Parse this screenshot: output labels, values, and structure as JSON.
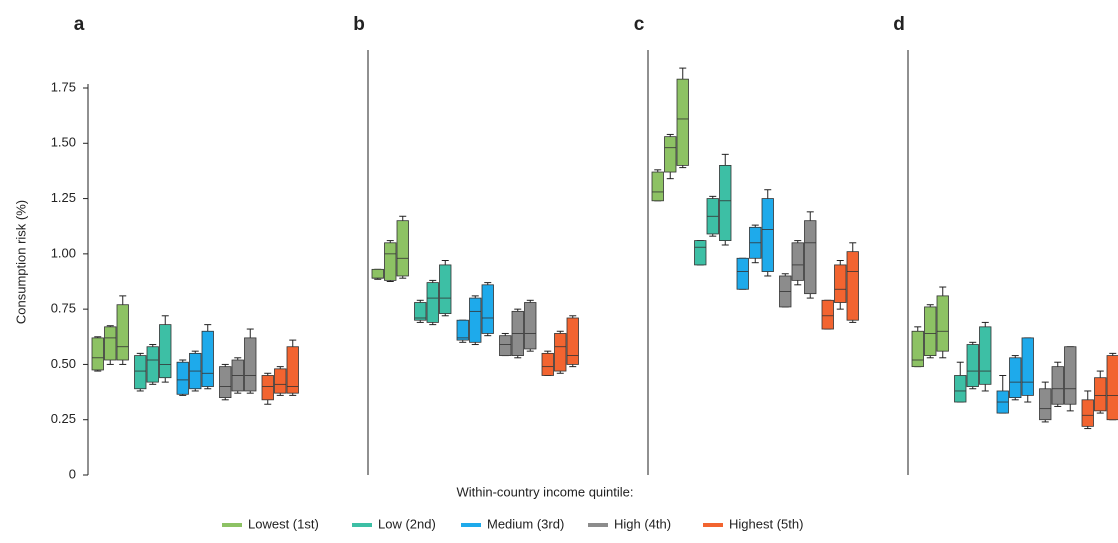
{
  "chart_data": {
    "type": "box",
    "ylabel": "Consumption risk (%)",
    "ylim": [
      0,
      1.75
    ],
    "yticks": [
      0,
      0.25,
      {
        "value": 0.5,
        "label": "0.50"
      },
      0.75,
      {
        "value": 1,
        "label": "1.00"
      },
      1.25,
      {
        "value": 1.5,
        "label": "1.50"
      },
      1.75
    ],
    "legend_title": "Within-country income quintile:",
    "series": [
      {
        "name": "Lowest (1st)",
        "color": "#8dc264"
      },
      {
        "name": "Low (2nd)",
        "color": "#3dbfa5"
      },
      {
        "name": "Medium (3rd)",
        "color": "#1eaaeb"
      },
      {
        "name": "High (4th)",
        "color": "#8c8c8c"
      },
      {
        "name": "Highest (5th)",
        "color": "#f26430"
      }
    ],
    "panels": [
      {
        "label": "a",
        "boxes": [
          [
            [
              0.47,
              0.475,
              0.53,
              0.62,
              0.625
            ],
            [
              0.5,
              0.52,
              0.62,
              0.67,
              0.675
            ],
            [
              0.5,
              0.52,
              0.58,
              0.77,
              0.81
            ]
          ],
          [
            [
              0.38,
              0.39,
              0.47,
              0.54,
              0.55
            ],
            [
              0.41,
              0.42,
              0.52,
              0.58,
              0.59
            ],
            [
              0.42,
              0.44,
              0.5,
              0.68,
              0.72
            ]
          ],
          [
            [
              0.36,
              0.365,
              0.43,
              0.51,
              0.52
            ],
            [
              0.38,
              0.39,
              0.47,
              0.55,
              0.56
            ],
            [
              0.39,
              0.4,
              0.46,
              0.65,
              0.68
            ]
          ],
          [
            [
              0.34,
              0.35,
              0.4,
              0.49,
              0.5
            ],
            [
              0.37,
              0.38,
              0.45,
              0.52,
              0.53
            ],
            [
              0.37,
              0.38,
              0.45,
              0.62,
              0.66
            ]
          ],
          [
            [
              0.32,
              0.34,
              0.4,
              0.45,
              0.46
            ],
            [
              0.36,
              0.37,
              0.41,
              0.48,
              0.49
            ],
            [
              0.36,
              0.37,
              0.4,
              0.58,
              0.61
            ]
          ]
        ]
      },
      {
        "label": "b",
        "boxes": [
          [
            [
              0.885,
              0.89,
              0.89,
              0.93,
              0.93
            ],
            [
              0.875,
              0.88,
              1.0,
              1.05,
              1.06
            ],
            [
              0.89,
              0.9,
              0.98,
              1.15,
              1.17
            ]
          ],
          [
            [
              0.69,
              0.7,
              0.71,
              0.78,
              0.79
            ],
            [
              0.68,
              0.69,
              0.8,
              0.87,
              0.88
            ],
            [
              0.72,
              0.73,
              0.8,
              0.95,
              0.97
            ]
          ],
          [
            [
              0.6,
              0.61,
              0.62,
              0.7,
              0.7
            ],
            [
              0.59,
              0.6,
              0.74,
              0.8,
              0.81
            ],
            [
              0.63,
              0.64,
              0.71,
              0.86,
              0.87
            ]
          ],
          [
            [
              0.54,
              0.54,
              0.59,
              0.63,
              0.64
            ],
            [
              0.53,
              0.54,
              0.64,
              0.74,
              0.75
            ],
            [
              0.56,
              0.57,
              0.64,
              0.78,
              0.79
            ]
          ],
          [
            [
              0.45,
              0.45,
              0.49,
              0.55,
              0.56
            ],
            [
              0.46,
              0.47,
              0.58,
              0.64,
              0.65
            ],
            [
              0.49,
              0.5,
              0.54,
              0.71,
              0.72
            ]
          ]
        ]
      },
      {
        "label": "c",
        "boxes": [
          [
            [
              1.24,
              1.24,
              1.28,
              1.37,
              1.38
            ],
            [
              1.34,
              1.37,
              1.48,
              1.53,
              1.54
            ],
            [
              1.39,
              1.4,
              1.61,
              1.79,
              1.84
            ]
          ],
          [
            [
              0.95,
              0.95,
              1.03,
              1.06,
              1.06
            ],
            [
              1.08,
              1.09,
              1.17,
              1.25,
              1.26
            ],
            [
              1.04,
              1.06,
              1.24,
              1.4,
              1.45
            ]
          ],
          [
            [
              0.84,
              0.84,
              0.92,
              0.98,
              0.98
            ],
            [
              0.96,
              0.98,
              1.05,
              1.12,
              1.13
            ],
            [
              0.9,
              0.92,
              1.11,
              1.25,
              1.29
            ]
          ],
          [
            [
              0.76,
              0.76,
              0.83,
              0.9,
              0.91
            ],
            [
              0.86,
              0.88,
              0.95,
              1.05,
              1.06
            ],
            [
              0.8,
              0.82,
              1.05,
              1.15,
              1.19
            ]
          ],
          [
            [
              0.66,
              0.66,
              0.72,
              0.79,
              0.79
            ],
            [
              0.75,
              0.78,
              0.84,
              0.95,
              0.97
            ],
            [
              0.69,
              0.7,
              0.92,
              1.01,
              1.05
            ]
          ]
        ]
      },
      {
        "label": "d",
        "boxes": [
          [
            [
              0.49,
              0.49,
              0.52,
              0.65,
              0.67
            ],
            [
              0.53,
              0.54,
              0.64,
              0.76,
              0.77
            ],
            [
              0.53,
              0.56,
              0.65,
              0.81,
              0.85
            ]
          ],
          [
            [
              0.33,
              0.33,
              0.38,
              0.45,
              0.51
            ],
            [
              0.39,
              0.4,
              0.47,
              0.59,
              0.6
            ],
            [
              0.38,
              0.41,
              0.47,
              0.67,
              0.69
            ]
          ],
          [
            [
              0.28,
              0.28,
              0.33,
              0.38,
              0.45
            ],
            [
              0.34,
              0.35,
              0.42,
              0.53,
              0.54
            ],
            [
              0.33,
              0.36,
              0.42,
              0.62,
              0.62
            ]
          ],
          [
            [
              0.24,
              0.25,
              0.3,
              0.39,
              0.42
            ],
            [
              0.31,
              0.32,
              0.39,
              0.49,
              0.51
            ],
            [
              0.29,
              0.32,
              0.39,
              0.58,
              0.58
            ]
          ],
          [
            [
              0.21,
              0.22,
              0.27,
              0.34,
              0.38
            ],
            [
              0.28,
              0.29,
              0.36,
              0.44,
              0.47
            ],
            [
              0.25,
              0.25,
              0.36,
              0.54,
              0.55
            ]
          ]
        ]
      }
    ]
  }
}
